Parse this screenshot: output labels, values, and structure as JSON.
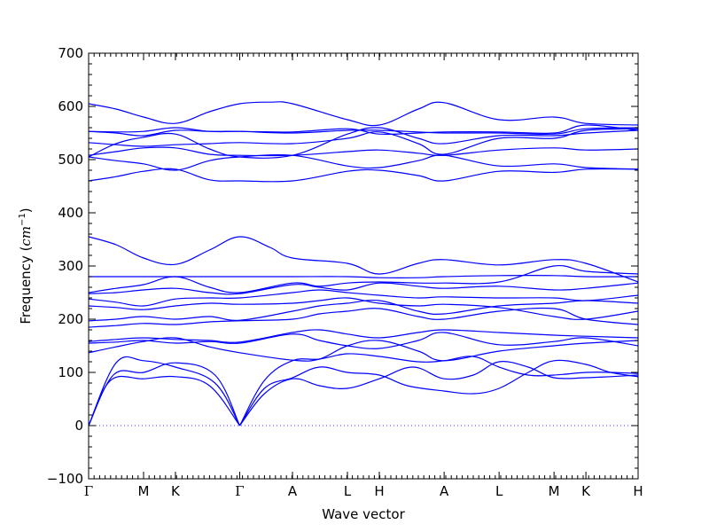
{
  "chart_data": {
    "type": "line",
    "title": "",
    "xlabel": "Wave vector",
    "ylabel": {
      "prefix": "Frequency (",
      "unit_base": "cm",
      "unit_exp": "−1",
      "suffix": ")"
    },
    "ylim": [
      -100,
      700
    ],
    "yticks": [
      -100,
      0,
      100,
      200,
      300,
      400,
      500,
      600,
      700
    ],
    "xlim": [
      0,
      10
    ],
    "xticks": [
      {
        "x": 0.0,
        "label": "Γ"
      },
      {
        "x": 1.0,
        "label": "M"
      },
      {
        "x": 1.58,
        "label": "K"
      },
      {
        "x": 2.75,
        "label": "Γ"
      },
      {
        "x": 3.71,
        "label": "A"
      },
      {
        "x": 4.71,
        "label": "L"
      },
      {
        "x": 5.29,
        "label": "H"
      },
      {
        "x": 6.47,
        "label": "A"
      },
      {
        "x": 7.47,
        "label": "L"
      },
      {
        "x": 8.47,
        "label": "M"
      },
      {
        "x": 9.05,
        "label": "K"
      },
      {
        "x": 10.0,
        "label": "H"
      }
    ],
    "zero_line": {
      "y": 0,
      "style": "dotted",
      "color": "#4040ff"
    },
    "grid": false,
    "legend": "none",
    "line_color": "#0000ff",
    "series": [
      {
        "x": [
          0,
          0.4,
          1.0,
          1.58,
          2.2,
          2.75
        ],
        "values": [
          0,
          85,
          88,
          92,
          75,
          0
        ]
      },
      {
        "x": [
          0,
          0.45,
          1.0,
          1.58,
          2.3,
          2.75
        ],
        "values": [
          0,
          95,
          100,
          118,
          95,
          0
        ]
      },
      {
        "x": [
          0,
          0.5,
          1.0,
          1.58,
          2.3,
          2.75
        ],
        "values": [
          0,
          118,
          122,
          110,
          80,
          0
        ]
      },
      {
        "x": [
          2.75,
          3.2,
          3.71,
          4.2,
          4.71,
          5.29,
          5.9,
          6.47,
          7.0,
          7.47,
          8.0,
          8.47,
          9.05,
          9.5,
          10.0
        ],
        "values": [
          0,
          60,
          88,
          75,
          70,
          88,
          110,
          88,
          95,
          120,
          110,
          90,
          90,
          92,
          95
        ]
      },
      {
        "x": [
          2.75,
          3.2,
          3.71,
          4.2,
          4.71,
          5.29,
          5.8,
          6.47,
          7.0,
          7.47,
          8.0,
          8.47,
          9.05,
          9.5,
          10.0
        ],
        "values": [
          0,
          70,
          90,
          110,
          100,
          95,
          75,
          65,
          60,
          70,
          100,
          122,
          115,
          100,
          92
        ]
      },
      {
        "x": [
          2.75,
          3.2,
          3.71,
          4.2,
          4.71,
          5.29,
          6.0,
          6.47,
          7.0,
          7.47,
          8.0,
          8.47,
          9.05,
          9.5,
          10.0
        ],
        "values": [
          0,
          85,
          122,
          125,
          135,
          130,
          120,
          122,
          130,
          110,
          95,
          95,
          100,
          100,
          98
        ]
      },
      {
        "x": [
          0,
          0.5,
          1.0,
          1.58,
          2.2,
          2.75,
          3.71,
          4.2,
          4.71,
          5.29,
          6.0,
          6.47,
          7.47,
          8.47,
          9.05,
          10.0
        ],
        "values": [
          137,
          148,
          158,
          165,
          148,
          137,
          123,
          125,
          150,
          160,
          140,
          122,
          140,
          150,
          155,
          160
        ]
      },
      {
        "x": [
          0,
          0.5,
          1.0,
          1.58,
          2.2,
          2.75,
          3.71,
          4.2,
          4.71,
          5.29,
          6.0,
          6.47,
          7.47,
          8.47,
          9.05,
          10.0
        ],
        "values": [
          155,
          157,
          160,
          155,
          158,
          155,
          172,
          160,
          150,
          145,
          160,
          175,
          152,
          158,
          165,
          150
        ]
      },
      {
        "x": [
          0,
          0.5,
          1.0,
          1.58,
          2.2,
          2.75,
          3.71,
          4.2,
          4.71,
          5.29,
          6.0,
          6.47,
          7.47,
          8.47,
          9.05,
          10.0
        ],
        "values": [
          158,
          162,
          165,
          162,
          160,
          157,
          175,
          180,
          172,
          165,
          175,
          180,
          175,
          170,
          168,
          165
        ]
      },
      {
        "x": [
          0,
          0.5,
          1.0,
          1.58,
          2.2,
          2.75,
          3.71,
          4.2,
          4.71,
          5.29,
          6.0,
          6.47,
          7.47,
          8.47,
          9.05,
          10.0
        ],
        "values": [
          185,
          188,
          192,
          190,
          195,
          197,
          200,
          210,
          215,
          220,
          205,
          200,
          215,
          220,
          200,
          190
        ]
      },
      {
        "x": [
          0,
          0.5,
          1.0,
          1.58,
          2.2,
          2.75,
          3.71,
          4.2,
          4.71,
          5.29,
          6.0,
          6.47,
          7.47,
          8.47,
          9.05,
          10.0
        ],
        "values": [
          197,
          200,
          205,
          200,
          205,
          198,
          215,
          225,
          230,
          235,
          215,
          210,
          225,
          230,
          235,
          230
        ]
      },
      {
        "x": [
          0,
          0.5,
          1.0,
          1.58,
          2.2,
          2.75,
          3.71,
          4.2,
          4.71,
          5.29,
          6.0,
          6.47,
          7.47,
          8.47,
          9.05,
          10.0
        ],
        "values": [
          225,
          222,
          218,
          225,
          230,
          228,
          230,
          235,
          240,
          230,
          225,
          228,
          222,
          205,
          200,
          215
        ]
      },
      {
        "x": [
          0,
          0.5,
          1.0,
          1.58,
          2.2,
          2.75,
          3.71,
          4.2,
          4.71,
          5.29,
          6.0,
          6.47,
          7.47,
          8.47,
          9.05,
          10.0
        ],
        "values": [
          238,
          232,
          225,
          238,
          240,
          240,
          250,
          255,
          250,
          245,
          240,
          242,
          240,
          240,
          235,
          245
        ]
      },
      {
        "x": [
          0,
          0.5,
          1.0,
          1.58,
          2.2,
          2.75,
          3.71,
          4.2,
          4.71,
          5.29,
          6.0,
          6.47,
          7.47,
          8.47,
          9.05,
          10.0
        ],
        "values": [
          248,
          250,
          255,
          258,
          250,
          248,
          265,
          260,
          255,
          268,
          262,
          258,
          262,
          255,
          258,
          268
        ]
      },
      {
        "x": [
          0,
          0.5,
          1.0,
          1.58,
          2.2,
          2.75,
          3.71,
          4.2,
          4.71,
          5.29,
          6.0,
          6.47,
          7.47,
          8.47,
          9.05,
          10.0
        ],
        "values": [
          250,
          258,
          265,
          280,
          260,
          250,
          268,
          262,
          268,
          270,
          268,
          268,
          270,
          300,
          290,
          285
        ]
      },
      {
        "x": [
          0,
          0.5,
          1.0,
          1.58,
          2.2,
          2.75,
          3.71,
          4.71,
          5.29,
          6.0,
          6.47,
          7.47,
          8.47,
          9.05,
          10.0
        ],
        "values": [
          280,
          280,
          280,
          280,
          280,
          280,
          280,
          280,
          278,
          278,
          280,
          282,
          282,
          280,
          280
        ]
      },
      {
        "x": [
          0,
          0.5,
          1.0,
          1.58,
          2.2,
          2.75,
          3.3,
          3.71,
          4.71,
          5.29,
          6.0,
          6.47,
          7.47,
          8.47,
          9.05,
          10.0
        ],
        "values": [
          355,
          340,
          315,
          303,
          330,
          355,
          335,
          315,
          305,
          285,
          305,
          312,
          302,
          312,
          305,
          270
        ]
      },
      {
        "x": [
          0,
          0.5,
          1.0,
          1.58,
          2.2,
          2.75,
          3.71,
          4.71,
          5.29,
          6.0,
          6.47,
          7.47,
          8.47,
          9.05,
          10.0
        ],
        "values": [
          460,
          468,
          478,
          482,
          462,
          460,
          460,
          478,
          480,
          470,
          460,
          478,
          476,
          482,
          482
        ]
      },
      {
        "x": [
          0,
          0.5,
          1.0,
          1.58,
          2.2,
          2.75,
          3.71,
          4.71,
          5.29,
          6.0,
          6.47,
          7.47,
          8.47,
          9.05,
          10.0
        ],
        "values": [
          505,
          498,
          492,
          480,
          498,
          505,
          508,
          488,
          485,
          498,
          508,
          488,
          492,
          485,
          482
        ]
      },
      {
        "x": [
          0,
          0.5,
          1.0,
          1.58,
          2.2,
          2.75,
          3.71,
          4.71,
          5.29,
          6.0,
          6.47,
          7.47,
          8.47,
          9.05,
          10.0
        ],
        "values": [
          508,
          515,
          522,
          522,
          510,
          508,
          508,
          515,
          518,
          512,
          508,
          518,
          522,
          518,
          520
        ]
      },
      {
        "x": [
          0,
          0.5,
          1.0,
          1.58,
          2.2,
          2.75,
          3.71,
          4.71,
          5.29,
          6.0,
          6.47,
          7.47,
          8.47,
          9.05,
          10.0
        ],
        "values": [
          532,
          528,
          525,
          528,
          530,
          532,
          530,
          540,
          552,
          530,
          510,
          540,
          540,
          555,
          558
        ]
      },
      {
        "x": [
          0,
          0.5,
          1.0,
          1.58,
          2.2,
          2.75,
          3.71,
          4.71,
          5.29,
          6.0,
          6.47,
          7.47,
          8.47,
          9.05,
          10.0
        ],
        "values": [
          505,
          530,
          542,
          548,
          520,
          505,
          508,
          548,
          560,
          540,
          530,
          545,
          545,
          550,
          555
        ]
      },
      {
        "x": [
          0,
          0.5,
          1.0,
          1.58,
          2.2,
          2.75,
          3.71,
          4.71,
          5.29,
          6.0,
          6.47,
          7.47,
          8.47,
          9.05,
          10.0
        ],
        "values": [
          553,
          550,
          545,
          555,
          553,
          553,
          550,
          555,
          555,
          552,
          550,
          550,
          548,
          558,
          560
        ]
      },
      {
        "x": [
          0,
          0.5,
          1.0,
          1.58,
          2.2,
          2.75,
          3.71,
          4.71,
          5.29,
          6.0,
          6.47,
          7.47,
          8.47,
          9.05,
          10.0
        ],
        "values": [
          553,
          552,
          553,
          560,
          553,
          553,
          552,
          558,
          548,
          550,
          552,
          552,
          550,
          565,
          555
        ]
      },
      {
        "x": [
          0,
          0.5,
          1.0,
          1.58,
          2.2,
          2.75,
          3.3,
          3.71,
          4.71,
          5.29,
          6.0,
          6.47,
          7.47,
          8.47,
          9.05,
          10.0
        ],
        "values": [
          605,
          595,
          580,
          568,
          590,
          605,
          608,
          605,
          575,
          565,
          595,
          607,
          575,
          580,
          568,
          565
        ]
      }
    ]
  }
}
